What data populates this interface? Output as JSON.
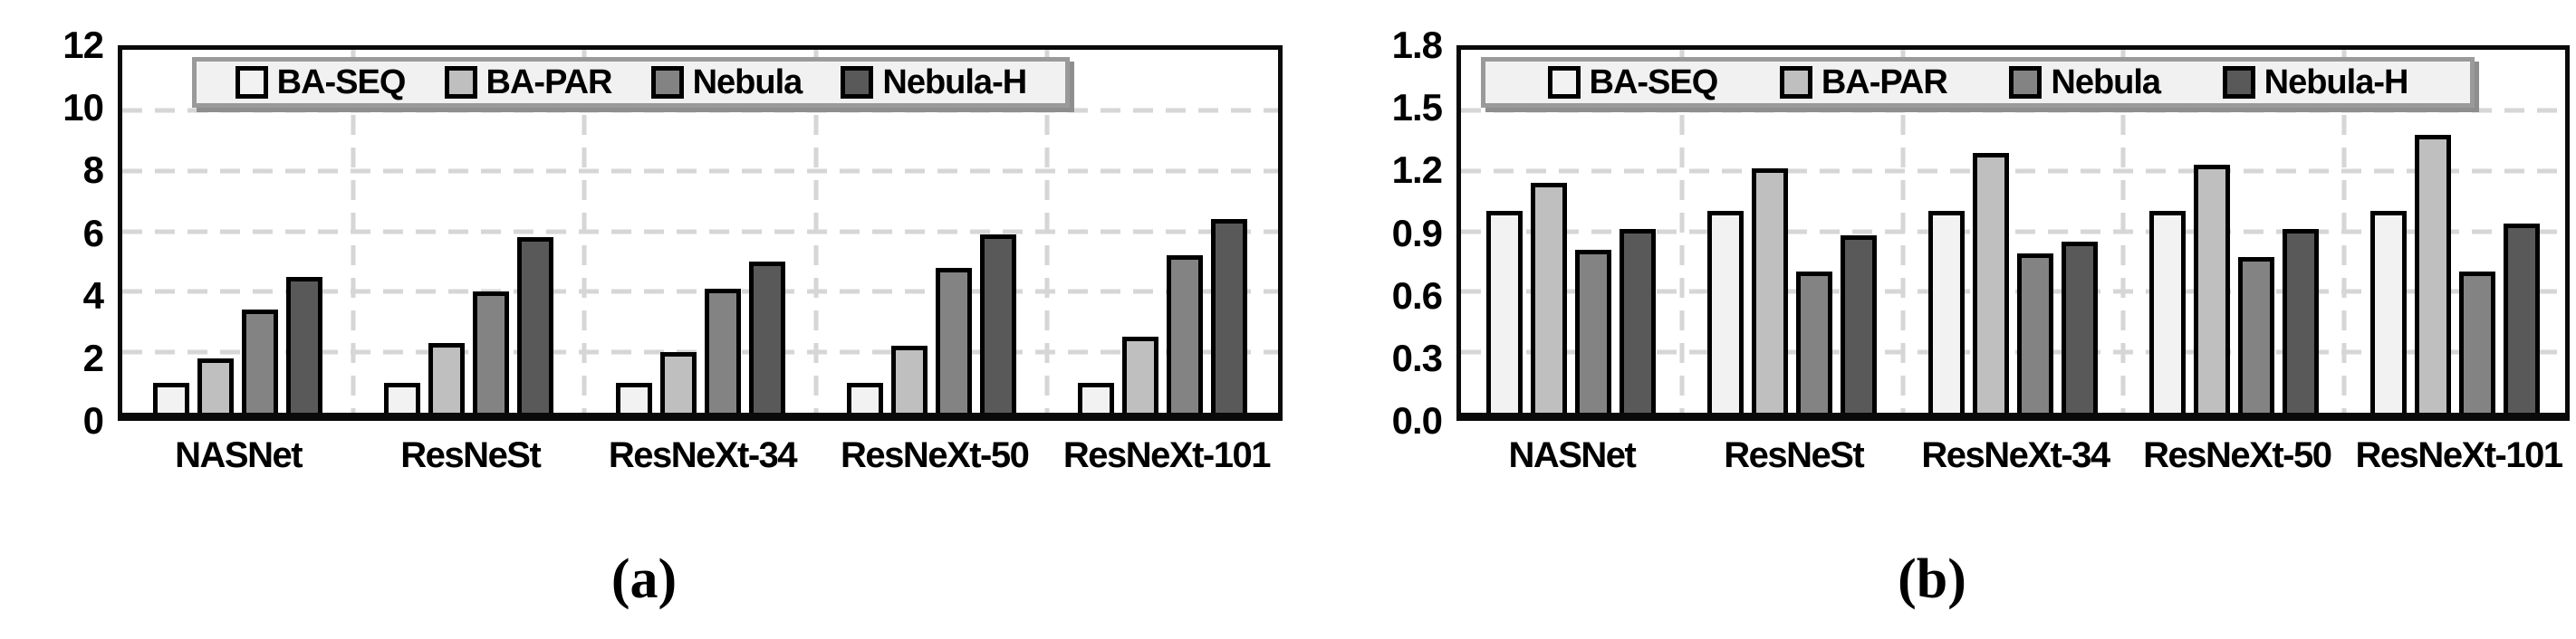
{
  "chart_data": [
    {
      "type": "bar",
      "caption": "(a)",
      "categories": [
        "NASNet",
        "ResNeSt",
        "ResNeXt-34",
        "ResNeXt-50",
        "ResNeXt-101"
      ],
      "series": [
        {
          "name": "BA-SEQ",
          "color": "#f2f2f2",
          "values": [
            1.0,
            1.0,
            1.0,
            1.0,
            1.0
          ]
        },
        {
          "name": "BA-PAR",
          "color": "#bfbfbf",
          "values": [
            1.8,
            2.3,
            2.0,
            2.2,
            2.5
          ]
        },
        {
          "name": "Nebula",
          "color": "#838383",
          "values": [
            3.4,
            4.0,
            4.1,
            4.8,
            5.2
          ]
        },
        {
          "name": "Nebula-H",
          "color": "#595959",
          "values": [
            4.5,
            5.8,
            5.0,
            5.9,
            6.4
          ]
        }
      ],
      "ylim": [
        0,
        12
      ],
      "yticks": [
        0,
        2,
        4,
        6,
        8,
        10,
        12
      ],
      "ytick_labels": [
        "0",
        "2",
        "4",
        "6",
        "8",
        "10",
        "12"
      ],
      "grid": "dashed",
      "legend_position": "top-inside"
    },
    {
      "type": "bar",
      "caption": "(b)",
      "categories": [
        "NASNet",
        "ResNeSt",
        "ResNeXt-34",
        "ResNeXt-50",
        "ResNeXt-101"
      ],
      "series": [
        {
          "name": "BA-SEQ",
          "color": "#f2f2f2",
          "values": [
            1.0,
            1.0,
            1.0,
            1.0,
            1.0
          ]
        },
        {
          "name": "BA-PAR",
          "color": "#bfbfbf",
          "values": [
            1.14,
            1.21,
            1.29,
            1.23,
            1.38
          ]
        },
        {
          "name": "Nebula",
          "color": "#838383",
          "values": [
            0.81,
            0.7,
            0.79,
            0.77,
            0.7
          ]
        },
        {
          "name": "Nebula-H",
          "color": "#595959",
          "values": [
            0.91,
            0.88,
            0.85,
            0.91,
            0.94
          ]
        }
      ],
      "ylim": [
        0,
        1.8
      ],
      "yticks": [
        0,
        0.3,
        0.6,
        0.9,
        1.2,
        1.5,
        1.8
      ],
      "ytick_labels": [
        "0.0",
        "0.3",
        "0.6",
        "0.9",
        "1.2",
        "1.5",
        "1.8"
      ],
      "grid": "dashed",
      "legend_position": "top-inside"
    }
  ]
}
